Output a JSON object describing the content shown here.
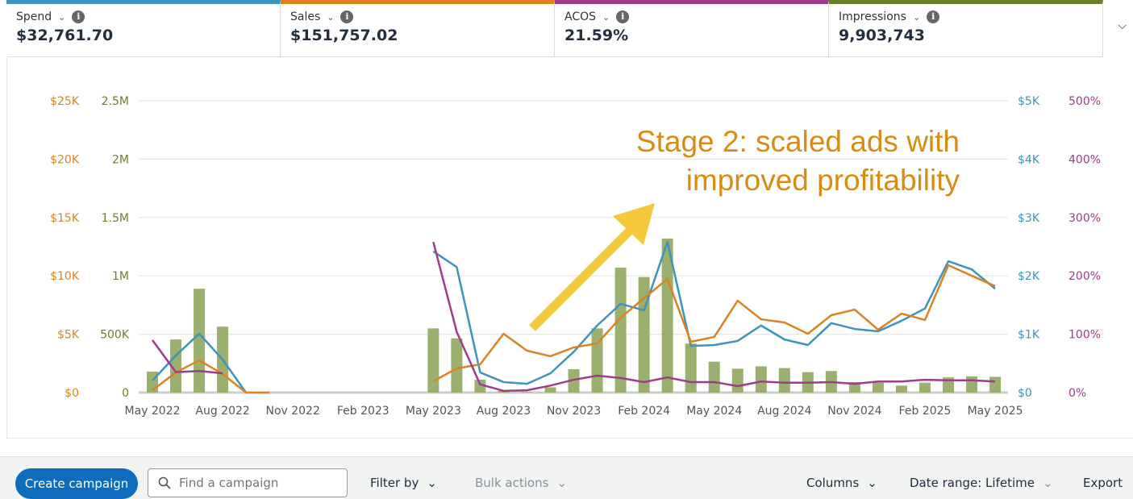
{
  "metrics": [
    {
      "label": "Spend",
      "value": "$32,761.70",
      "color": "#3d94bd"
    },
    {
      "label": "Sales",
      "value": "$151,757.02",
      "color": "#db8322"
    },
    {
      "label": "ACOS",
      "value": "21.59%",
      "color": "#a03c8c"
    },
    {
      "label": "Impressions",
      "value": "9,903,743",
      "color": "#6b7f2a"
    }
  ],
  "annotation": {
    "line1": "Stage 2: scaled ads with",
    "line2": "improved profitability",
    "color": "#d98c12",
    "arrow_color": "#f6c83c"
  },
  "toolbar": {
    "create": "Create campaign",
    "search_placeholder": "Find a campaign",
    "filter": "Filter by",
    "bulk": "Bulk actions",
    "columns": "Columns",
    "date_range": "Date range: Lifetime",
    "export": "Export"
  },
  "chart_data": {
    "type": "bar+line",
    "x_tick_labels": [
      "May 2022",
      "Aug 2022",
      "Nov 2022",
      "Feb 2023",
      "May 2023",
      "Aug 2023",
      "Nov 2023",
      "Feb 2024",
      "May 2024",
      "Aug 2024",
      "Nov 2024",
      "Feb 2025",
      "May 2025"
    ],
    "months": 37,
    "axes": {
      "sales": {
        "ticks": [
          "$0",
          "$5K",
          "$10K",
          "$15K",
          "$20K",
          "$25K"
        ],
        "max": 25000,
        "color": "#db8322"
      },
      "impressions": {
        "ticks": [
          "0",
          "500K",
          "1M",
          "1.5M",
          "2M",
          "2.5M"
        ],
        "max": 2500000,
        "color": "#6b7f2a"
      },
      "spend": {
        "ticks": [
          "$0",
          "$1K",
          "$2K",
          "$3K",
          "$4K",
          "$5K"
        ],
        "max": 5000,
        "color": "#3d94bd"
      },
      "acos": {
        "ticks": [
          "0%",
          "100%",
          "200%",
          "300%",
          "400%",
          "500%"
        ],
        "max": 500,
        "color": "#a03c8c"
      }
    },
    "series": [
      {
        "name": "Impressions",
        "type": "bar",
        "axis": "impressions",
        "color": "#9bb06e",
        "values": [
          180000,
          455000,
          890000,
          565000,
          0,
          0,
          0,
          0,
          0,
          0,
          0,
          0,
          550000,
          465000,
          110000,
          15000,
          5000,
          45000,
          200000,
          550000,
          1070000,
          990000,
          1320000,
          420000,
          265000,
          205000,
          225000,
          210000,
          175000,
          185000,
          90000,
          85000,
          60000,
          85000,
          130000,
          140000,
          135000
        ]
      },
      {
        "name": "Spend",
        "type": "line",
        "axis": "spend",
        "color": "#3d94bd",
        "values": [
          205,
          635,
          1010,
          565,
          0,
          null,
          null,
          null,
          null,
          null,
          null,
          null,
          2420,
          2150,
          345,
          180,
          150,
          330,
          700,
          1150,
          1520,
          1410,
          2580,
          800,
          815,
          885,
          1150,
          910,
          815,
          1190,
          1090,
          1050,
          1230,
          1440,
          2250,
          2110,
          1780
        ]
      },
      {
        "name": "Sales",
        "type": "line",
        "axis": "sales",
        "color": "#db8322",
        "values": [
          200,
          1730,
          2760,
          1590,
          0,
          0,
          null,
          null,
          null,
          null,
          null,
          null,
          970,
          2070,
          2420,
          5040,
          3590,
          3110,
          3870,
          4210,
          6420,
          8080,
          9740,
          4350,
          4770,
          7870,
          6280,
          6010,
          5040,
          6630,
          7110,
          5390,
          6770,
          6220,
          10910,
          10010,
          9120
        ]
      },
      {
        "name": "ACOS",
        "type": "line",
        "axis": "acos",
        "color": "#a03c8c",
        "values": [
          90,
          35,
          37,
          33,
          null,
          null,
          null,
          null,
          null,
          null,
          null,
          null,
          258,
          104,
          14,
          3,
          4,
          12,
          22,
          29,
          25,
          18,
          26,
          18,
          18,
          11,
          19,
          17,
          17,
          18,
          15,
          19,
          19,
          22,
          21,
          21,
          19
        ]
      }
    ]
  }
}
